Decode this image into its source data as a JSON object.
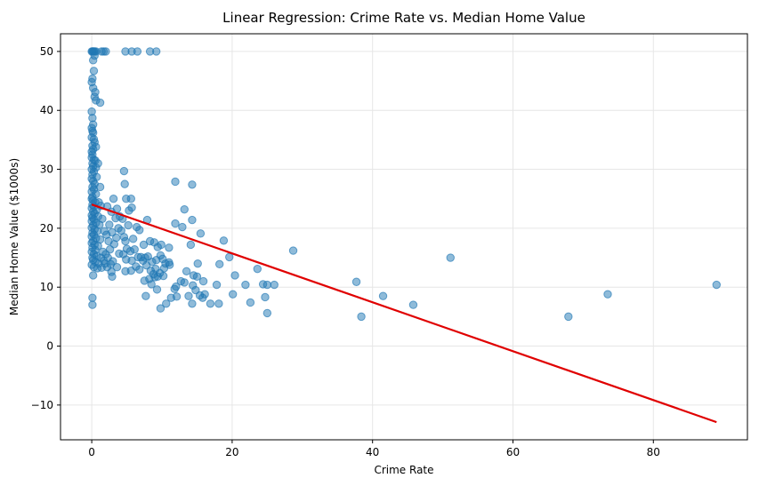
{
  "chart_data": {
    "type": "scatter",
    "title": "Linear Regression: Crime Rate vs. Median Home Value",
    "xlabel": "Crime Rate",
    "ylabel": "Median Home Value ($1000s)",
    "xlim": [
      -4.45,
      93.4
    ],
    "ylim": [
      -15.9,
      53.0
    ],
    "x_ticks": [
      0,
      20,
      40,
      60,
      80
    ],
    "y_ticks": [
      -10,
      0,
      10,
      20,
      30,
      40,
      50
    ],
    "x_tick_labels": [
      "0",
      "20",
      "40",
      "60",
      "80"
    ],
    "y_tick_labels": [
      "−10",
      "0",
      "10",
      "20",
      "30",
      "40",
      "50"
    ],
    "grid": true,
    "colors": {
      "points": "#1f77b4",
      "line": "#e00000",
      "grid": "#e6e6e6"
    },
    "series": [
      {
        "kind": "scatter",
        "points": [
          [
            0.0,
            50
          ],
          [
            0.1,
            50
          ],
          [
            0.2,
            50
          ],
          [
            0.3,
            50
          ],
          [
            0.4,
            50
          ],
          [
            0.6,
            50
          ],
          [
            1.4,
            50
          ],
          [
            1.7,
            50
          ],
          [
            2.0,
            50
          ],
          [
            4.8,
            50
          ],
          [
            5.7,
            50
          ],
          [
            6.5,
            50
          ],
          [
            8.3,
            50
          ],
          [
            9.2,
            50
          ],
          [
            0.4,
            49.3
          ],
          [
            0.2,
            48.5
          ],
          [
            0.3,
            46.7
          ],
          [
            0.1,
            45.4
          ],
          [
            0.0,
            44.8
          ],
          [
            0.2,
            43.8
          ],
          [
            0.5,
            43.1
          ],
          [
            0.4,
            42.3
          ],
          [
            0.6,
            41.7
          ],
          [
            1.2,
            41.3
          ],
          [
            0.0,
            39.8
          ],
          [
            0.1,
            38.7
          ],
          [
            0.2,
            37.6
          ],
          [
            0.0,
            37.0
          ],
          [
            0.1,
            36.5
          ],
          [
            0.2,
            36.2
          ],
          [
            0.0,
            35.4
          ],
          [
            0.3,
            35.1
          ],
          [
            0.4,
            34.6
          ],
          [
            0.1,
            34.0
          ],
          [
            0.2,
            33.4
          ],
          [
            0.0,
            33.0
          ],
          [
            0.6,
            33.8
          ],
          [
            0.1,
            32.5
          ],
          [
            0.0,
            32.0
          ],
          [
            0.3,
            31.6
          ],
          [
            0.5,
            31.5
          ],
          [
            0.1,
            31.0
          ],
          [
            0.9,
            31.0
          ],
          [
            0.2,
            30.5
          ],
          [
            0.6,
            30.3
          ],
          [
            0.0,
            30.0
          ],
          [
            0.3,
            29.6
          ],
          [
            0.1,
            29.1
          ],
          [
            0.7,
            28.7
          ],
          [
            0.0,
            28.4
          ],
          [
            0.2,
            28.0
          ],
          [
            0.4,
            27.5
          ],
          [
            0.1,
            27.0
          ],
          [
            1.2,
            27.0
          ],
          [
            0.3,
            26.6
          ],
          [
            0.0,
            26.2
          ],
          [
            0.6,
            25.8
          ],
          [
            0.1,
            25.3
          ],
          [
            0.0,
            25.0
          ],
          [
            0.2,
            24.7
          ],
          [
            0.5,
            24.4
          ],
          [
            1.0,
            24.4
          ],
          [
            0.1,
            24.0
          ],
          [
            0.3,
            23.7
          ],
          [
            0.0,
            23.4
          ],
          [
            0.7,
            23.1
          ],
          [
            1.3,
            23.8
          ],
          [
            0.2,
            22.8
          ],
          [
            0.4,
            22.5
          ],
          [
            0.0,
            22.2
          ],
          [
            0.9,
            22.0
          ],
          [
            0.1,
            21.8
          ],
          [
            0.3,
            21.5
          ],
          [
            1.5,
            21.6
          ],
          [
            0.0,
            21.2
          ],
          [
            0.6,
            20.9
          ],
          [
            0.2,
            20.5
          ],
          [
            1.1,
            20.6
          ],
          [
            0.0,
            20.1
          ],
          [
            0.4,
            19.8
          ],
          [
            0.8,
            19.5
          ],
          [
            1.8,
            19.5
          ],
          [
            0.1,
            19.2
          ],
          [
            0.3,
            18.9
          ],
          [
            0.0,
            18.6
          ],
          [
            0.6,
            18.3
          ],
          [
            1.2,
            18.1
          ],
          [
            0.2,
            17.8
          ],
          [
            0.0,
            17.5
          ],
          [
            0.4,
            17.2
          ],
          [
            0.9,
            17.0
          ],
          [
            0.1,
            16.7
          ],
          [
            0.5,
            16.3
          ],
          [
            0.0,
            16.0
          ],
          [
            1.6,
            16.0
          ],
          [
            0.3,
            15.6
          ],
          [
            0.7,
            15.3
          ],
          [
            0.1,
            15.0
          ],
          [
            1.3,
            15.0
          ],
          [
            0.2,
            14.6
          ],
          [
            0.5,
            14.3
          ],
          [
            1.0,
            14.0
          ],
          [
            0.0,
            13.8
          ],
          [
            0.3,
            13.4
          ],
          [
            0.8,
            13.2
          ],
          [
            1.4,
            13.3
          ],
          [
            0.2,
            12.0
          ],
          [
            0.1,
            8.2
          ],
          [
            0.1,
            7.0
          ],
          [
            2.2,
            23.7
          ],
          [
            2.8,
            22.8
          ],
          [
            3.1,
            25.0
          ],
          [
            3.6,
            23.3
          ],
          [
            4.0,
            22.0
          ],
          [
            4.4,
            21.6
          ],
          [
            3.4,
            21.7
          ],
          [
            2.5,
            20.6
          ],
          [
            3.8,
            20.0
          ],
          [
            4.2,
            19.6
          ],
          [
            2.9,
            19.3
          ],
          [
            2.1,
            18.9
          ],
          [
            3.5,
            18.4
          ],
          [
            4.6,
            18.5
          ],
          [
            2.4,
            17.8
          ],
          [
            3.2,
            17.3
          ],
          [
            2.6,
            16.4
          ],
          [
            3.9,
            15.7
          ],
          [
            2.0,
            15.6
          ],
          [
            4.5,
            15.6
          ],
          [
            2.3,
            15.0
          ],
          [
            3.0,
            14.4
          ],
          [
            2.7,
            13.9
          ],
          [
            3.6,
            13.4
          ],
          [
            2.2,
            13.4
          ],
          [
            2.8,
            12.6
          ],
          [
            2.9,
            11.8
          ],
          [
            1.7,
            14.5
          ],
          [
            1.9,
            14.0
          ],
          [
            4.6,
            29.7
          ],
          [
            4.7,
            27.5
          ],
          [
            4.9,
            25.0
          ],
          [
            5.6,
            25.0
          ],
          [
            5.3,
            23.0
          ],
          [
            5.7,
            23.5
          ],
          [
            6.4,
            20.2
          ],
          [
            6.8,
            19.7
          ],
          [
            5.2,
            20.5
          ],
          [
            4.8,
            17.8
          ],
          [
            5.9,
            18.2
          ],
          [
            5.0,
            16.5
          ],
          [
            5.5,
            16.1
          ],
          [
            6.1,
            16.4
          ],
          [
            4.9,
            14.7
          ],
          [
            5.7,
            14.5
          ],
          [
            6.6,
            15.1
          ],
          [
            7.0,
            15.1
          ],
          [
            7.3,
            14.5
          ],
          [
            6.3,
            13.5
          ],
          [
            5.6,
            12.8
          ],
          [
            4.8,
            12.7
          ],
          [
            6.8,
            13.0
          ],
          [
            7.4,
            17.2
          ],
          [
            7.9,
            21.4
          ],
          [
            8.3,
            17.8
          ],
          [
            8.9,
            17.6
          ],
          [
            9.4,
            16.8
          ],
          [
            9.9,
            17.2
          ],
          [
            7.6,
            15.0
          ],
          [
            8.0,
            15.2
          ],
          [
            8.6,
            14.3
          ],
          [
            9.2,
            14.6
          ],
          [
            9.8,
            15.4
          ],
          [
            10.1,
            14.8
          ],
          [
            10.5,
            14.0
          ],
          [
            11.0,
            14.2
          ],
          [
            7.8,
            13.7
          ],
          [
            8.4,
            12.8
          ],
          [
            9.1,
            13.1
          ],
          [
            9.7,
            12.4
          ],
          [
            10.3,
            13.2
          ],
          [
            8.8,
            12.2
          ],
          [
            9.4,
            11.8
          ],
          [
            10.2,
            11.9
          ],
          [
            8.2,
            11.4
          ],
          [
            7.5,
            11.1
          ],
          [
            9.0,
            11.7
          ],
          [
            8.5,
            10.5
          ],
          [
            9.3,
            9.6
          ],
          [
            7.7,
            8.5
          ],
          [
            9.8,
            6.4
          ],
          [
            10.6,
            7.2
          ],
          [
            11.3,
            8.2
          ],
          [
            11.0,
            16.7
          ],
          [
            11.1,
            13.8
          ],
          [
            11.9,
            27.9
          ],
          [
            14.3,
            27.4
          ],
          [
            13.2,
            23.2
          ],
          [
            11.9,
            20.8
          ],
          [
            12.9,
            20.2
          ],
          [
            14.3,
            21.4
          ],
          [
            15.5,
            19.1
          ],
          [
            14.1,
            17.2
          ],
          [
            18.8,
            17.9
          ],
          [
            19.6,
            15.1
          ],
          [
            20.4,
            12.0
          ],
          [
            21.9,
            10.4
          ],
          [
            18.2,
            13.9
          ],
          [
            15.1,
            14.0
          ],
          [
            13.5,
            12.7
          ],
          [
            14.5,
            12.0
          ],
          [
            15.0,
            11.8
          ],
          [
            15.9,
            11.0
          ],
          [
            12.7,
            11.0
          ],
          [
            12.0,
            10.1
          ],
          [
            13.2,
            10.8
          ],
          [
            11.8,
            9.7
          ],
          [
            14.4,
            10.3
          ],
          [
            14.8,
            9.5
          ],
          [
            16.1,
            8.8
          ],
          [
            17.8,
            10.4
          ],
          [
            13.8,
            8.5
          ],
          [
            12.1,
            8.4
          ],
          [
            15.4,
            8.6
          ],
          [
            15.8,
            8.2
          ],
          [
            14.3,
            7.2
          ],
          [
            16.9,
            7.2
          ],
          [
            18.1,
            7.2
          ],
          [
            20.1,
            8.8
          ],
          [
            22.6,
            7.4
          ],
          [
            23.6,
            13.1
          ],
          [
            24.4,
            10.5
          ],
          [
            25.0,
            10.4
          ],
          [
            26.0,
            10.4
          ],
          [
            24.7,
            8.3
          ],
          [
            25.0,
            5.6
          ],
          [
            28.7,
            16.2
          ],
          [
            37.7,
            10.9
          ],
          [
            38.4,
            5.0
          ],
          [
            41.5,
            8.5
          ],
          [
            45.8,
            7.0
          ],
          [
            51.1,
            15.0
          ],
          [
            67.9,
            5.0
          ],
          [
            73.5,
            8.8
          ],
          [
            89.0,
            10.4
          ]
        ]
      },
      {
        "kind": "line",
        "x": [
          0.0,
          89.0
        ],
        "y": [
          24.03,
          -12.9
        ]
      }
    ]
  }
}
